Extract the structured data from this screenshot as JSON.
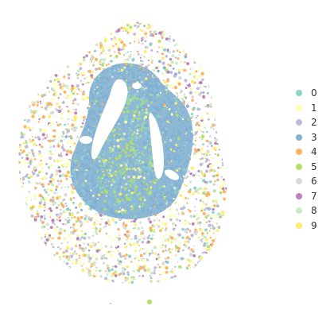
{
  "legend": {
    "items": [
      {
        "label": "0",
        "color": "#8DD3C7"
      },
      {
        "label": "1",
        "color": "#FFFFB3"
      },
      {
        "label": "2",
        "color": "#BEBADA"
      },
      {
        "label": "3",
        "color": "#80B1D3"
      },
      {
        "label": "4",
        "color": "#FDB462"
      },
      {
        "label": "5",
        "color": "#B3DE69"
      },
      {
        "label": "6",
        "color": "#D9D9D9"
      },
      {
        "label": "7",
        "color": "#BC80BD"
      },
      {
        "label": "8",
        "color": "#CCEBC5"
      },
      {
        "label": "9",
        "color": "#FFED6F"
      }
    ]
  }
}
